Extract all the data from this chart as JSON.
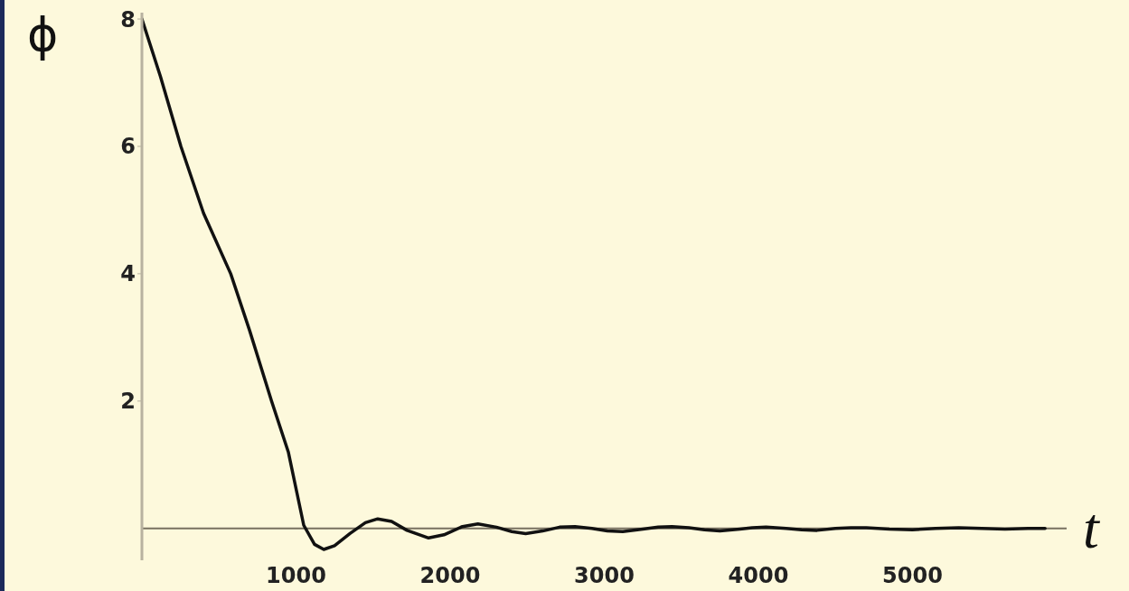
{
  "chart_data": {
    "type": "line",
    "xlabel": "t",
    "ylabel": "ϕ",
    "x": [
      0,
      120,
      253,
      400,
      576,
      700,
      841,
      950,
      1050,
      1120,
      1180,
      1250,
      1350,
      1450,
      1530,
      1620,
      1720,
      1860,
      1960,
      2080,
      2180,
      2300,
      2400,
      2490,
      2600,
      2710,
      2810,
      2920,
      3020,
      3120,
      3250,
      3350,
      3440,
      3550,
      3650,
      3750,
      3880,
      3960,
      4050,
      4180,
      4280,
      4380,
      4500,
      4600,
      4700,
      4850,
      5000,
      5150,
      5300,
      5450,
      5600,
      5750,
      5860
    ],
    "series": [
      {
        "color": "#111111",
        "values": [
          8,
          7.1,
          6,
          4.95,
          4,
          3.1,
          2,
          1.2,
          0.05,
          -0.25,
          -0.33,
          -0.27,
          -0.08,
          0.09,
          0.15,
          0.11,
          -0.03,
          -0.15,
          -0.1,
          0.03,
          0.07,
          0.02,
          -0.05,
          -0.08,
          -0.04,
          0.02,
          0.03,
          0,
          -0.04,
          -0.05,
          -0.01,
          0.02,
          0.03,
          0.01,
          -0.02,
          -0.04,
          -0.01,
          0.01,
          0.02,
          0,
          -0.02,
          -0.03,
          0,
          0.01,
          0.01,
          -0.01,
          -0.02,
          0,
          0.01,
          0,
          -0.01,
          0,
          0
        ]
      }
    ],
    "xlim": [
      0,
      6000
    ],
    "ylim": [
      -0.5,
      8.1
    ],
    "xticks": [
      1000,
      2000,
      3000,
      4000,
      5000
    ],
    "yticks": [
      2,
      4,
      6,
      8
    ],
    "grid": false,
    "legend": false,
    "marker": "none",
    "line_style": "solid"
  }
}
